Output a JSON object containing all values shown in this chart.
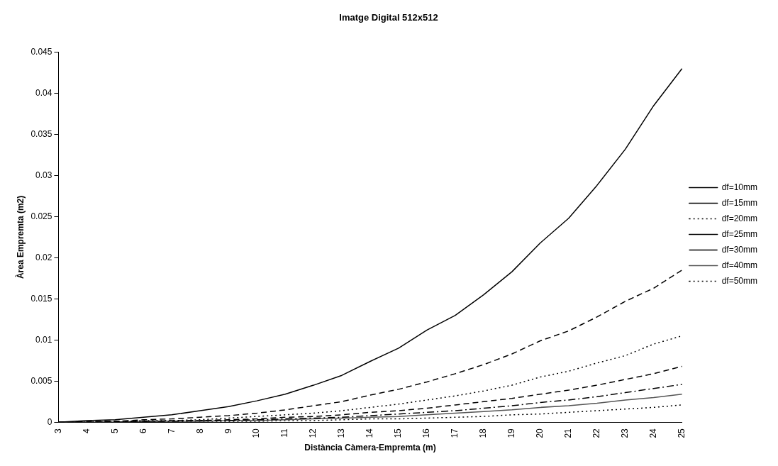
{
  "chart_data": {
    "type": "line",
    "title": "Imatge Digital 512x512",
    "xlabel": "Distància Càmera-Empremta (m)",
    "ylabel": "Àrea Empremta (m2)",
    "categories": [
      "3",
      "4",
      "5",
      "6",
      "7",
      "8",
      "9",
      "10",
      "11",
      "12",
      "13",
      "14",
      "15",
      "16",
      "17",
      "18",
      "19",
      "20",
      "21",
      "22",
      "23",
      "24",
      "25"
    ],
    "ylim": [
      0,
      0.045
    ],
    "yticks": [
      0,
      0.005,
      0.01,
      0.015,
      0.02,
      0.025,
      0.03,
      0.035,
      0.04,
      0.045
    ],
    "grid": false,
    "legend": "right",
    "marker": "none",
    "series": [
      {
        "name": "df=10mm",
        "color": "#000000",
        "line_style": "solid",
        "values": [
          0,
          0.0002,
          0.0003,
          0.0006,
          0.0009,
          0.0014,
          0.0019,
          0.0026,
          0.0034,
          0.0045,
          0.0057,
          0.0074,
          0.009,
          0.0112,
          0.013,
          0.0155,
          0.0183,
          0.0218,
          0.0248,
          0.0288,
          0.0332,
          0.0385,
          0.043
        ]
      },
      {
        "name": "df=15mm",
        "color": "#000000",
        "line_style": "dashed",
        "values": [
          0,
          0.0001,
          0.0001,
          0.0003,
          0.0004,
          0.0006,
          0.0008,
          0.0011,
          0.0015,
          0.002,
          0.0025,
          0.0033,
          0.004,
          0.0049,
          0.0059,
          0.007,
          0.0083,
          0.0099,
          0.0111,
          0.0128,
          0.0147,
          0.0163,
          0.0185
        ]
      },
      {
        "name": "df=20mm",
        "color": "#000000",
        "line_style": "dotted",
        "values": [
          0,
          0,
          0.0001,
          0.0002,
          0.0002,
          0.0003,
          0.0005,
          0.0007,
          0.0009,
          0.0011,
          0.0014,
          0.0018,
          0.0022,
          0.0027,
          0.0032,
          0.0038,
          0.0045,
          0.0055,
          0.0062,
          0.0072,
          0.0081,
          0.0095,
          0.0105
        ]
      },
      {
        "name": "df=25mm",
        "color": "#000000",
        "line_style": "dashed",
        "values": [
          0,
          0,
          0.0001,
          0.0001,
          0.0002,
          0.0002,
          0.0003,
          0.0004,
          0.0006,
          0.0007,
          0.0009,
          0.0012,
          0.0014,
          0.0017,
          0.0021,
          0.0025,
          0.0029,
          0.0034,
          0.0039,
          0.0045,
          0.0052,
          0.0059,
          0.0068
        ]
      },
      {
        "name": "df=30mm",
        "color": "#000000",
        "line_style": "dashed",
        "values": [
          0,
          0,
          0,
          0.0001,
          0.0001,
          0.0002,
          0.0002,
          0.0003,
          0.0004,
          0.0005,
          0.0006,
          0.0008,
          0.001,
          0.0012,
          0.0014,
          0.0017,
          0.002,
          0.0024,
          0.0027,
          0.0031,
          0.0036,
          0.0041,
          0.0046
        ]
      },
      {
        "name": "df=40mm",
        "color": "#555555",
        "line_style": "solid",
        "values": [
          0,
          0,
          0,
          0.0001,
          0.0001,
          0.0001,
          0.0002,
          0.0002,
          0.0003,
          0.0004,
          0.0005,
          0.0006,
          0.0007,
          0.0009,
          0.0011,
          0.0013,
          0.0015,
          0.0018,
          0.002,
          0.0023,
          0.0027,
          0.003,
          0.0034
        ]
      },
      {
        "name": "df=50mm",
        "color": "#000000",
        "line_style": "dotted",
        "values": [
          0,
          0,
          0,
          0,
          0,
          0.0001,
          0.0001,
          0.0001,
          0.0002,
          0.0002,
          0.0003,
          0.0004,
          0.0004,
          0.0005,
          0.0006,
          0.0007,
          0.0009,
          0.001,
          0.0012,
          0.0014,
          0.0016,
          0.0018,
          0.0021
        ]
      }
    ]
  }
}
